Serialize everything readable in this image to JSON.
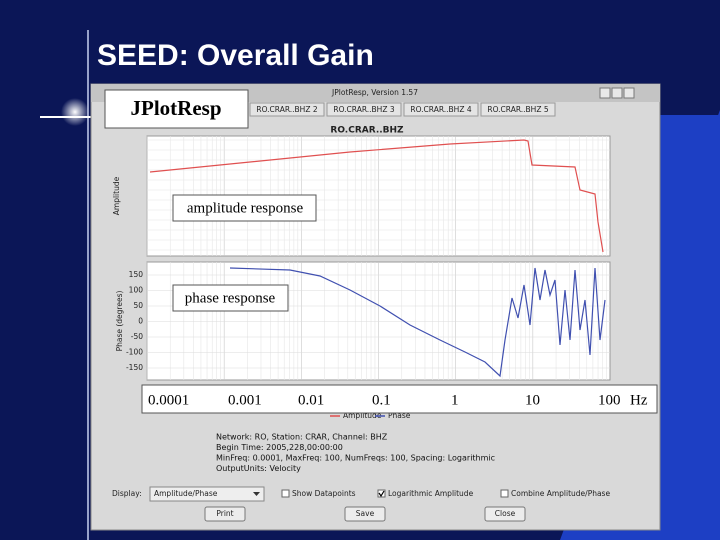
{
  "slide": {
    "title": "SEED: Overall Gain"
  },
  "window": {
    "title": "JPlotResp, Version 1.57",
    "tabs": [
      "RO.CRAR..BHZ 2",
      "RO.CRAR..BHZ 3",
      "RO.CRAR..BHZ 4",
      "RO.CRAR..BHZ 5"
    ],
    "plot_title": "RO.CRAR..BHZ",
    "amplitude_axis_label": "Amplitude",
    "phase_axis_label": "Phase (degrees)",
    "phase_ticks": [
      150,
      100,
      50,
      0,
      -50,
      -100,
      -150
    ],
    "legend": [
      "Amplitude",
      "Phase"
    ],
    "info": [
      "Network: RO,  Station: CRAR,  Channel: BHZ",
      "Begin Time: 2005,228,00:00:00",
      "MinFreq: 0.0001,  MaxFreq: 100,  NumFreqs: 100,  Spacing: Logarithmic",
      "OutputUnits: Velocity"
    ],
    "display_label": "Display:",
    "display_value": "Amplitude/Phase",
    "checkboxes": [
      "Show Datapoints",
      "Logarithmic Amplitude",
      "Combine Amplitude/Phase"
    ],
    "buttons": [
      "Print",
      "Save",
      "Close"
    ]
  },
  "callouts": {
    "app": "JPlotResp",
    "amplitude": "amplitude response",
    "phase": "phase response",
    "frequencies": [
      "0.0001",
      "0.001",
      "0.01",
      "0.1",
      "1",
      "10",
      "100"
    ],
    "unit": "Hz"
  }
}
